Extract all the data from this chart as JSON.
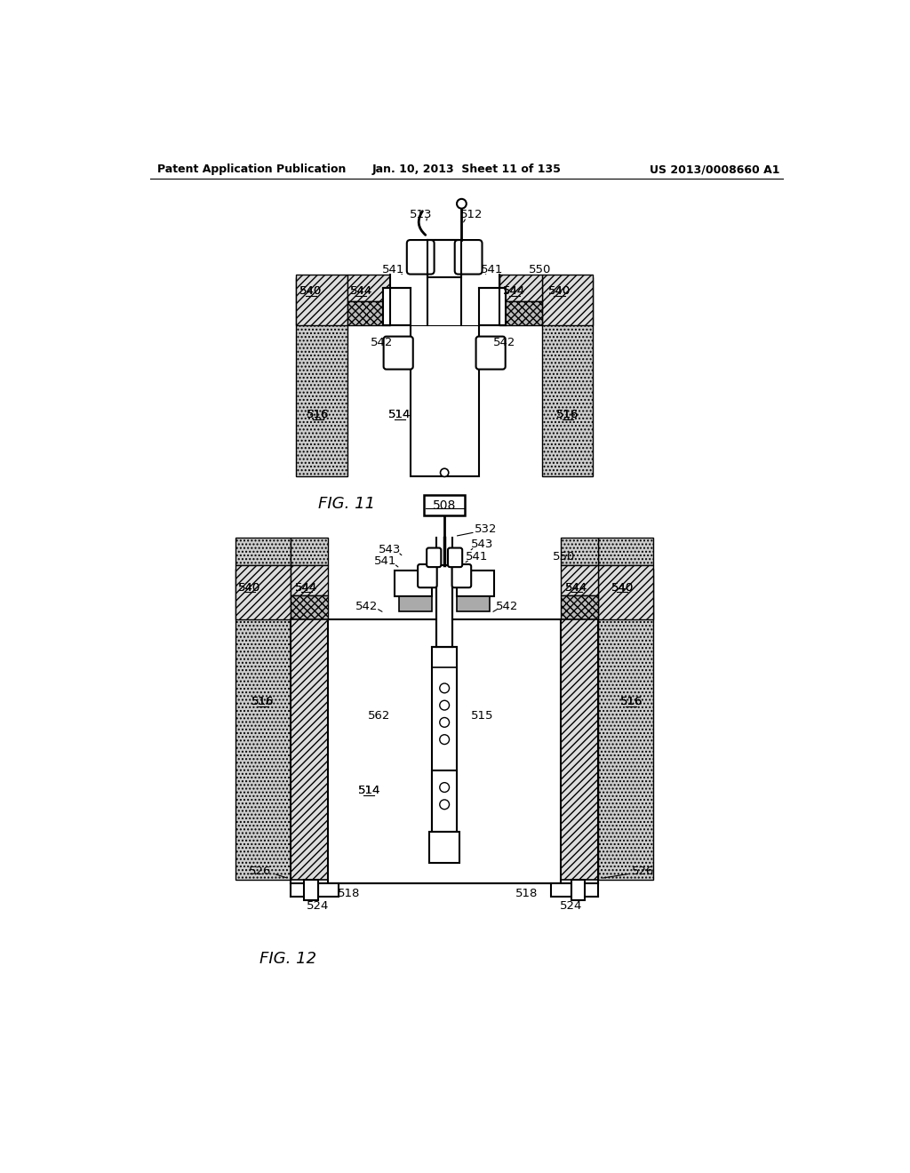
{
  "header_left": "Patent Application Publication",
  "header_center": "Jan. 10, 2013  Sheet 11 of 135",
  "header_right": "US 2013/0008660 A1",
  "fig11_label": "FIG. 11",
  "fig12_label": "FIG. 12",
  "bg_color": "#ffffff"
}
